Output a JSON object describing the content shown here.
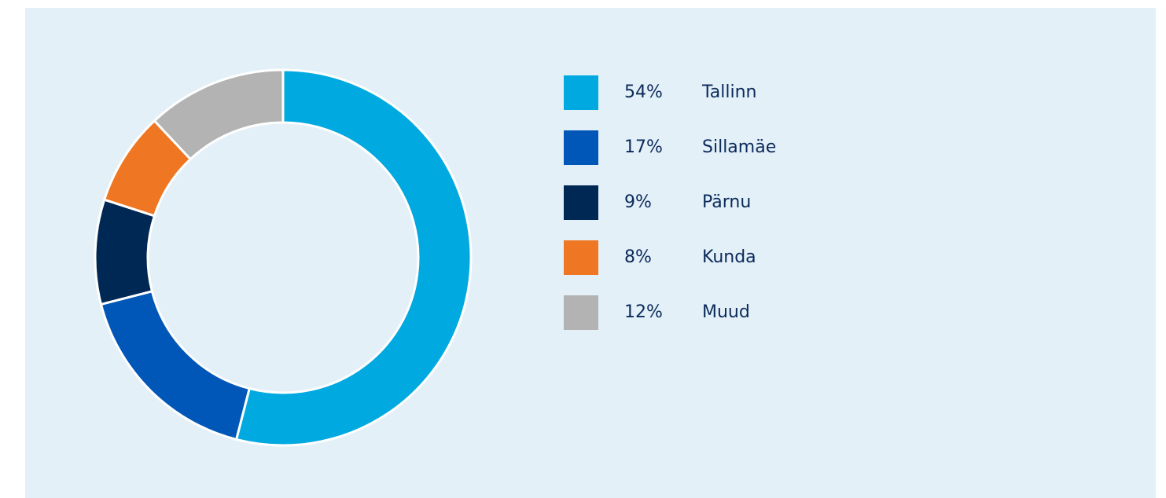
{
  "chart_data": {
    "type": "pie",
    "categories": [
      "Tallinn",
      "Sillamäe",
      "Pärnu",
      "Kunda",
      "Muud"
    ],
    "values": [
      54,
      17,
      9,
      8,
      12
    ],
    "value_labels": [
      "54%",
      "17%",
      "9%",
      "8%",
      "12%"
    ],
    "colors": [
      "#00a9e0",
      "#0057b8",
      "#002855",
      "#ef7622",
      "#b3b3b3"
    ]
  }
}
